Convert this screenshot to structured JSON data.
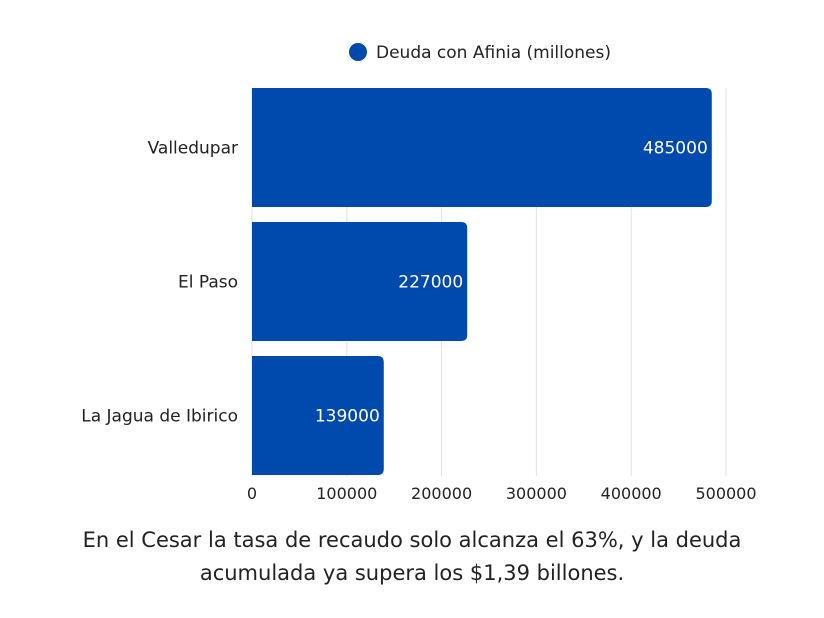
{
  "chart_data": {
    "type": "bar",
    "orientation": "horizontal",
    "categories": [
      "Valledupar",
      "El Paso",
      "La Jagua de Ibirico"
    ],
    "series": [
      {
        "name": "Deuda con Afinia (millones)",
        "values": [
          485000,
          227000,
          139000
        ],
        "color": "#0049ad"
      }
    ],
    "xlim": [
      0,
      500000
    ],
    "xticks": [
      "0",
      "100000",
      "200000",
      "300000",
      "400000",
      "500000"
    ],
    "grid": true,
    "legend": "top-center",
    "data_labels": true
  },
  "caption": {
    "line1": "En el Cesar la tasa de recaudo solo alcanza el 63%, y la deuda",
    "line2": "acumulada ya supera los $1,39 billones."
  }
}
